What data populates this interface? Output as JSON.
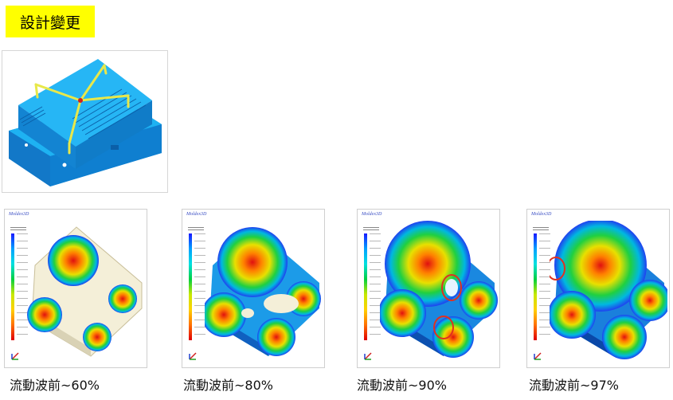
{
  "title": "設計變更",
  "brand_label": "Moldex3D",
  "colors": {
    "badge": "#ffff00",
    "model": "#19a9ef",
    "runner": "#e8e84a",
    "ring": "#e03020"
  },
  "panels": [
    {
      "caption": "流動波前~60%"
    },
    {
      "caption": "流動波前~80%"
    },
    {
      "caption": "流動波前~90%"
    },
    {
      "caption": "流動波前~97%"
    }
  ]
}
